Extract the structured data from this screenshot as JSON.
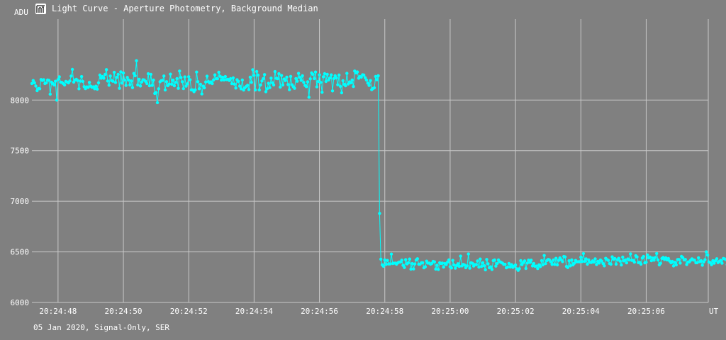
{
  "window": {
    "title": "Light Curve - Aperture Photometry, Background Median",
    "app_icon": "light-curve-app-icon"
  },
  "footer": {
    "caption": "05 Jan 2020, Signal-Only, SER"
  },
  "colors": {
    "background": "#808080",
    "grid": "#c8c8c8",
    "series": "#00ffff",
    "text": "#ffffff"
  },
  "chart_data": {
    "type": "line",
    "title": "Light Curve - Aperture Photometry, Background Median",
    "xlabel": "UT",
    "ylabel": "ADU",
    "x_unit": "UT",
    "y_unit": "ADU",
    "grid": true,
    "legend": "none",
    "xlim": [
      "20:24:47.2",
      "20:25:07.9"
    ],
    "ylim": [
      6000,
      8800
    ],
    "x_ticks": [
      "20:24:48",
      "20:24:50",
      "20:24:52",
      "20:24:54",
      "20:24:56",
      "20:24:58",
      "20:25:00",
      "20:25:02",
      "20:25:04",
      "20:25:06"
    ],
    "y_ticks": [
      6000,
      6500,
      7000,
      7500,
      8000
    ],
    "sample_interval_s": 0.04,
    "series": [
      {
        "values": [
          8164,
          8193,
          8171,
          8139,
          8093,
          8115,
          8112,
          8203,
          8194,
          8201,
          8164,
          8170,
          8198,
          8195,
          8058,
          8176,
          8162,
          8149,
          8186,
          8000,
          8203,
          8230,
          8176,
          8174,
          8162,
          8149,
          8185,
          8178,
          8170,
          8189,
          8237,
          8303,
          8178,
          8199,
          8205,
          8193,
          8112,
          8187,
          8232,
          8184,
          8133,
          8113,
          8130,
          8125,
          8175,
          8137,
          8126,
          8131,
          8112,
          8137,
          8108,
          8171,
          8247,
          8216,
          8232,
          8216,
          8253,
          8301,
          8189,
          8147,
          8238,
          8192,
          8186,
          8274,
          8174,
          8225,
          8254,
          8116,
          8279,
          8168,
          8267,
          8197,
          8145,
          8224,
          8199,
          8150,
          8189,
          8123,
          8263,
          8241,
          8389,
          8150,
          8206,
          8139,
          8179,
          8201,
          8199,
          8185,
          8163,
          8260,
          8141,
          8254,
          8145,
          8197,
          8066,
          8075,
          7975,
          8112,
          8181,
          8192,
          8194,
          8238,
          8100,
          8182,
          8142,
          8158,
          8256,
          8157,
          8197,
          8141,
          8175,
          8212,
          8116,
          8287,
          8223,
          8182,
          8113,
          8229,
          8138,
          8161,
          8231,
          8201,
          8101,
          8101,
          8083,
          8101,
          8277,
          8182,
          8112,
          8157,
          8061,
          8138,
          8121,
          8179,
          8236,
          8183,
          8169,
          8180,
          8164,
          8199,
          8249,
          8212,
          8211,
          8275,
          8235,
          8197,
          8225,
          8199,
          8232,
          8202,
          8205,
          8194,
          8212,
          8162,
          8219,
          8158,
          8119,
          8201,
          8185,
          8138,
          8112,
          8198,
          8099,
          8122,
          8135,
          8146,
          8104,
          8227,
          8175,
          8300,
          8244,
          8100,
          8282,
          8246,
          8100,
          8150,
          8189,
          8212,
          8252,
          8083,
          8112,
          8166,
          8123,
          8217,
          8171,
          8150,
          8281,
          8215,
          8211,
          8260,
          8128,
          8243,
          8149,
          8208,
          8193,
          8227,
          8154,
          8103,
          8234,
          8151,
          8132,
          8116,
          8213,
          8186,
          8264,
          8224,
          8195,
          8241,
          8175,
          8145,
          8133,
          8181,
          8028,
          8210,
          8269,
          8255,
          8213,
          8277,
          8131,
          8183,
          8249,
          8175,
          8077,
          8230,
          8261,
          8184,
          8255,
          8199,
          8218,
          8249,
          8091,
          8212,
          8241,
          8220,
          8151,
          8247,
          8135,
          8072,
          8192,
          8155,
          8141,
          8264,
          8159,
          8180,
          8170,
          8198,
          8134,
          8287,
          8269,
          8278,
          8216,
          8233,
          8227,
          8250,
          8247,
          8221,
          8198,
          8168,
          8145,
          8193,
          8103,
          8114,
          8121,
          8233,
          8201,
          8241,
          6880,
          6428,
          6372,
          6358,
          6420,
          6376,
          6415,
          6380,
          6381,
          6478,
          6385,
          6388,
          6389,
          6378,
          6393,
          6399,
          6399,
          6418,
          6367,
          6345,
          6423,
          6381,
          6391,
          6429,
          6329,
          6384,
          6331,
          6380,
          6420,
          6432,
          6377,
          6379,
          6392,
          6393,
          6342,
          6353,
          6408,
          6389,
          6389,
          6378,
          6385,
          6405,
          6401,
          6330,
          6368,
          6326,
          6393,
          6386,
          6389,
          6349,
          6385,
          6375,
          6398,
          6420,
          6353,
          6341,
          6416,
          6370,
          6339,
          6365,
          6383,
          6356,
          6458,
          6361,
          6376,
          6370,
          6344,
          6362,
          6479,
          6339,
          6392,
          6387,
          6360,
          6374,
          6373,
          6410,
          6349,
          6429,
          6356,
          6392,
          6363,
          6323,
          6425,
          6382,
          6343,
          6352,
          6326,
          6414,
          6419,
          6359,
          6385,
          6420,
          6402,
          6396,
          6389,
          6376,
          6377,
          6342,
          6349,
          6386,
          6350,
          6373,
          6347,
          6359,
          6370,
          6333,
          6317,
          6334,
          6413,
          6374,
          6395,
          6411,
          6336,
          6389,
          6418,
          6396,
          6418,
          6361,
          6385,
          6357,
          6360,
          6335,
          6372,
          6355,
          6414,
          6372,
          6464,
          6384,
          6414,
          6425,
          6420,
          6402,
          6376,
          6419,
          6376,
          6436,
          6371,
          6416,
          6440,
          6422,
          6404,
          6454,
          6450,
          6356,
          6345,
          6412,
          6362,
          6421,
          6371,
          6387,
          6415,
          6402,
          6403,
          6402,
          6447,
          6404,
          6483,
          6407,
          6431,
          6378,
          6421,
          6397,
          6395,
          6411,
          6399,
          6431,
          6375,
          6407,
          6390,
          6419,
          6408,
          6384,
          6362,
          6436,
          6424,
          6416,
          6384,
          6378,
          6451,
          6426,
          6434,
          6379,
          6422,
          6436,
          6409,
          6370,
          6448,
          6411,
          6420,
          6391,
          6430,
          6421,
          6480,
          6416,
          6415,
          6398,
          6463,
          6450,
          6394,
          6396,
          6379,
          6439,
          6454,
          6391,
          6397,
          6469,
          6440,
          6448,
          6412,
          6439,
          6418,
          6444,
          6484,
          6421,
          6372,
          6387,
          6435,
          6445,
          6425,
          6441,
          6421,
          6435,
          6409,
          6392,
          6405,
          6361,
          6397,
          6371,
          6424,
          6425,
          6389,
          6455,
          6443,
          6421,
          6425,
          6375,
          6400,
          6401,
          6417,
          6431,
          6420,
          6418,
          6393,
          6393,
          6442,
          6403,
          6413,
          6368,
          6401,
          6422,
          6500,
          6468,
          6400,
          6394,
          6373,
          6412,
          6388,
          6412,
          6432,
          6394,
          6406,
          6416,
          6388,
          6434,
          6431,
          6423,
          6374,
          6396,
          6402,
          6387,
          6382,
          6399,
          6387
        ]
      }
    ]
  }
}
